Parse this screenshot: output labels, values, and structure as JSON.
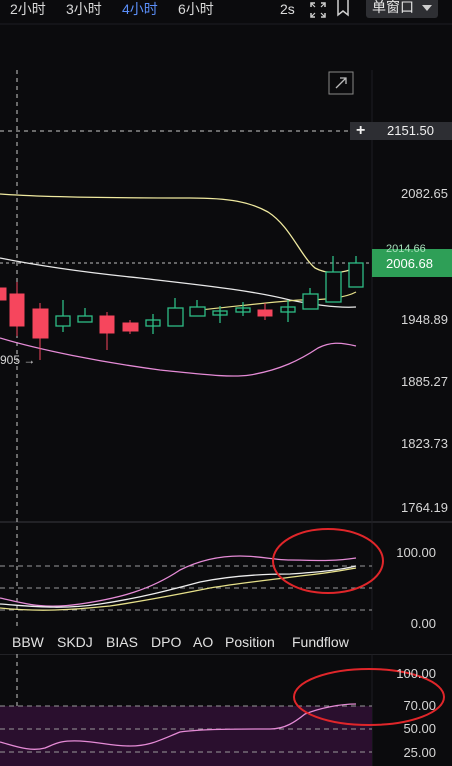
{
  "timeframes": [
    "2小时",
    "3小时",
    "4小时",
    "6小时"
  ],
  "active_timeframe": "4小时",
  "speed": "2s",
  "window_mode": "单窗口",
  "crosshair_price": "2151.50",
  "current_price": "2006.68",
  "current_price_ghost": "2014.66",
  "left_price_fragment": "905",
  "price_axis": [
    "2082.65",
    "1948.89",
    "1885.27",
    "1823.73",
    "1764.19"
  ],
  "panel1_axis": [
    "100.00",
    "0.00"
  ],
  "indicator_tabs": [
    "BBW",
    "SKDJ",
    "BIAS",
    "DPO",
    "AO",
    "Position",
    "Fundflow"
  ],
  "panel2_axis": [
    "100.00",
    "70.00",
    "50.00",
    "25.00"
  ],
  "colors": {
    "up": "#2ebd85",
    "down": "#f6465d",
    "accent": "#5b8ff9",
    "annotation": "#e0262a",
    "ma_yellow": "#e6e08a",
    "band_pink": "#e58bd6"
  },
  "icons": [
    "fullscreen-icon",
    "bookmark-icon",
    "expand-icon",
    "plus-icon",
    "arrow-right-icon"
  ]
}
